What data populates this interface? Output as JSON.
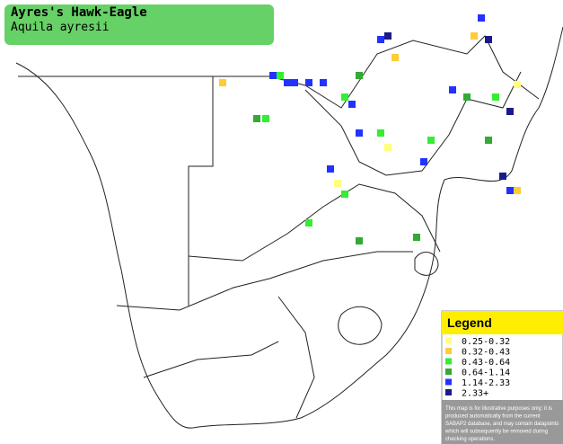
{
  "header": {
    "title": "Ayres's Hawk-Eagle",
    "subtitle": "Aquila ayresii"
  },
  "legend": {
    "title": "Legend",
    "entries": [
      {
        "label": "0.25-0.32",
        "color": "#ffff80"
      },
      {
        "label": "0.32-0.43",
        "color": "#ffcc33"
      },
      {
        "label": "0.43-0.64",
        "color": "#33ee33"
      },
      {
        "label": "0.64-1.14",
        "color": "#33aa33"
      },
      {
        "label": "1.14-2.33",
        "color": "#2233ff"
      },
      {
        "label": "2.33+",
        "color": "#1a1a88"
      }
    ],
    "disclaimer": [
      "This map is for illustrative purposes only; it is",
      "produced automatically from the current",
      "SABAP2 database, and may contain datapoints",
      "which will subsequently be removed during",
      "checking operations."
    ]
  }
}
